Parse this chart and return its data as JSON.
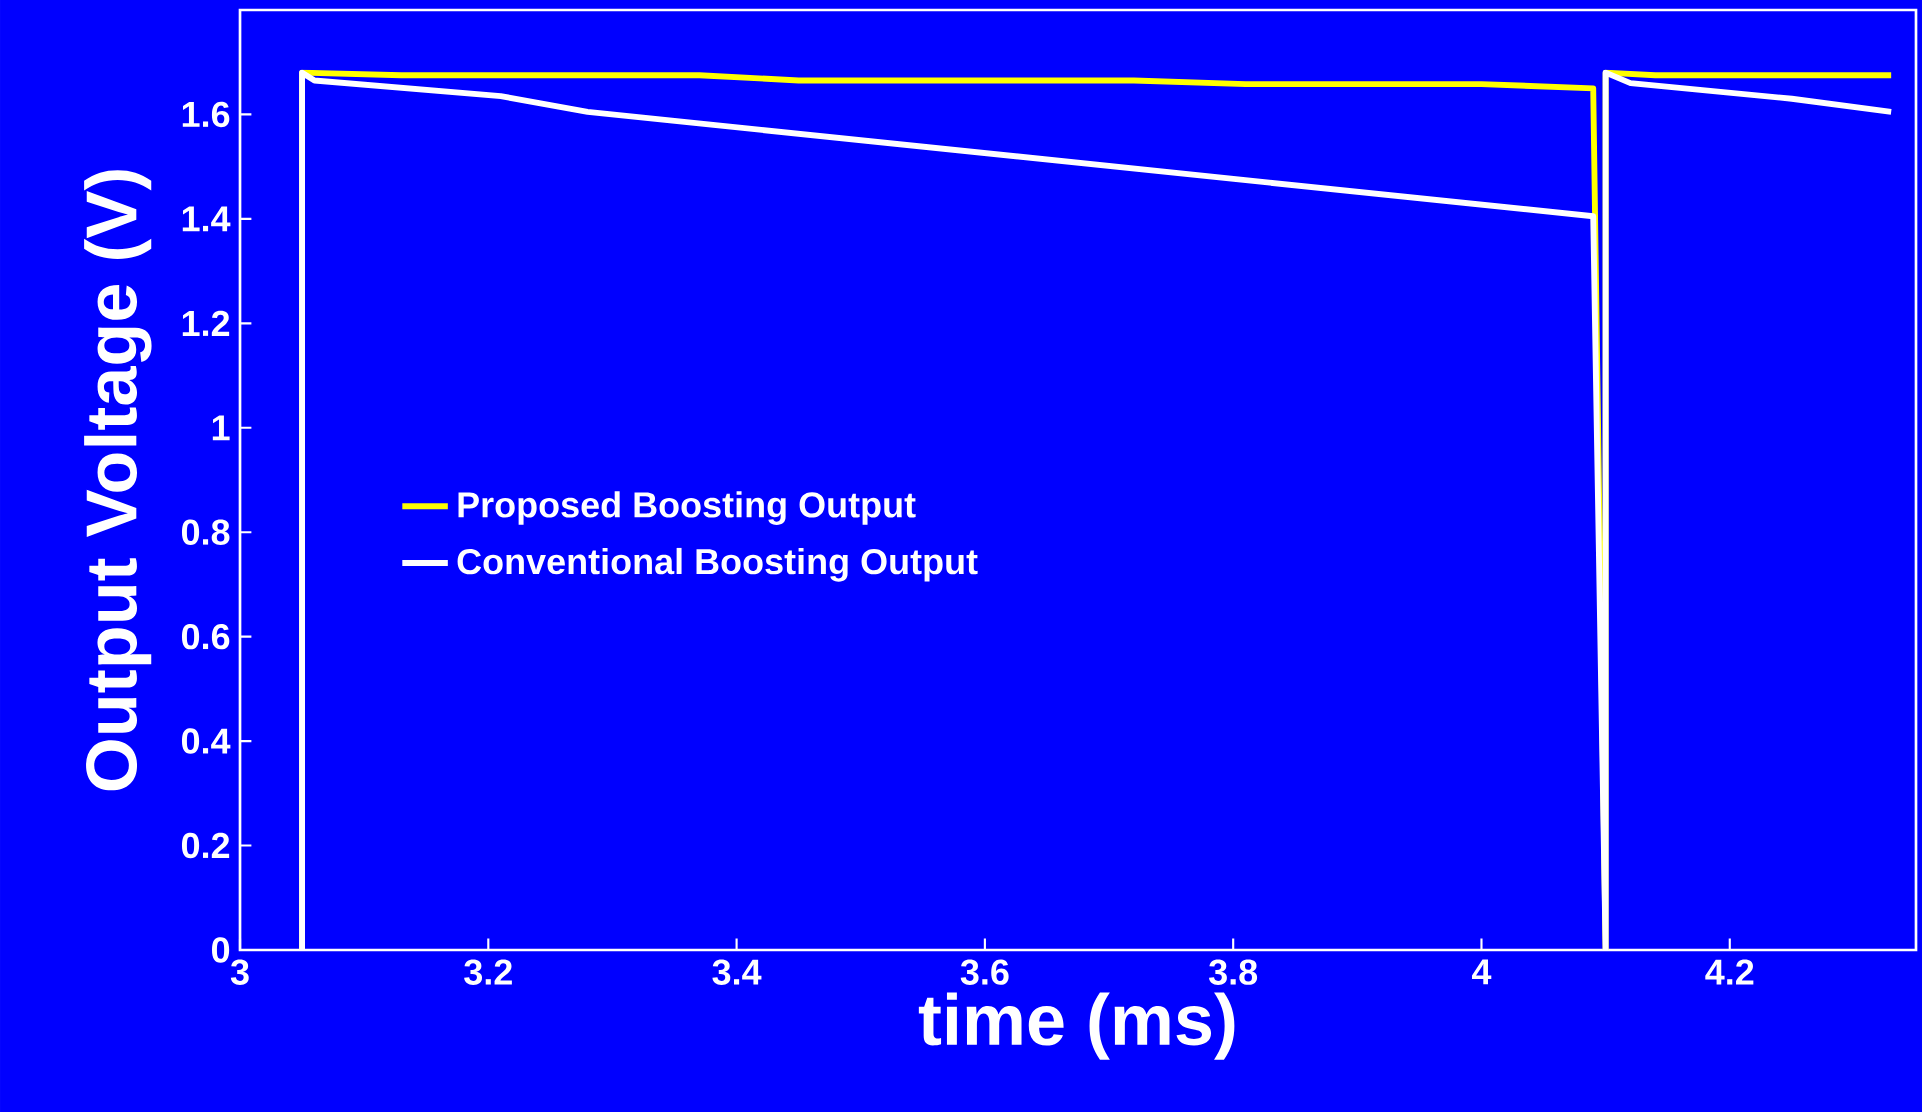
{
  "chart_data": {
    "type": "line",
    "xlabel": "time (ms)",
    "ylabel": "Output Voltage (V)",
    "xlim": [
      3,
      4.35
    ],
    "xticks": [
      3,
      3.2,
      3.4,
      3.6,
      3.8,
      4,
      4.2
    ],
    "ylim": [
      0,
      1.8
    ],
    "yticks": [
      0,
      0.2,
      0.4,
      0.6,
      0.8,
      1,
      1.2,
      1.4,
      1.6
    ],
    "grid": false,
    "legend": "left",
    "line_style": "solid",
    "series": [
      {
        "name": "Proposed Boosting Output",
        "color": "#ffff00",
        "x": [
          3.05,
          3.05,
          3.13,
          3.37,
          3.45,
          3.72,
          3.81,
          4.0,
          4.09,
          4.1,
          4.1,
          4.14,
          4.33
        ],
        "values": [
          0,
          1.68,
          1.675,
          1.675,
          1.665,
          1.665,
          1.658,
          1.658,
          1.65,
          0,
          1.68,
          1.675,
          1.675
        ]
      },
      {
        "name": "Conventional Boosting Output",
        "color": "#ffffff",
        "x": [
          3.05,
          3.05,
          3.06,
          3.21,
          3.28,
          4.09,
          4.1,
          4.1,
          4.12,
          4.25,
          4.33
        ],
        "values": [
          0,
          1.68,
          1.665,
          1.635,
          1.605,
          1.405,
          0,
          1.68,
          1.66,
          1.63,
          1.605
        ]
      }
    ]
  }
}
